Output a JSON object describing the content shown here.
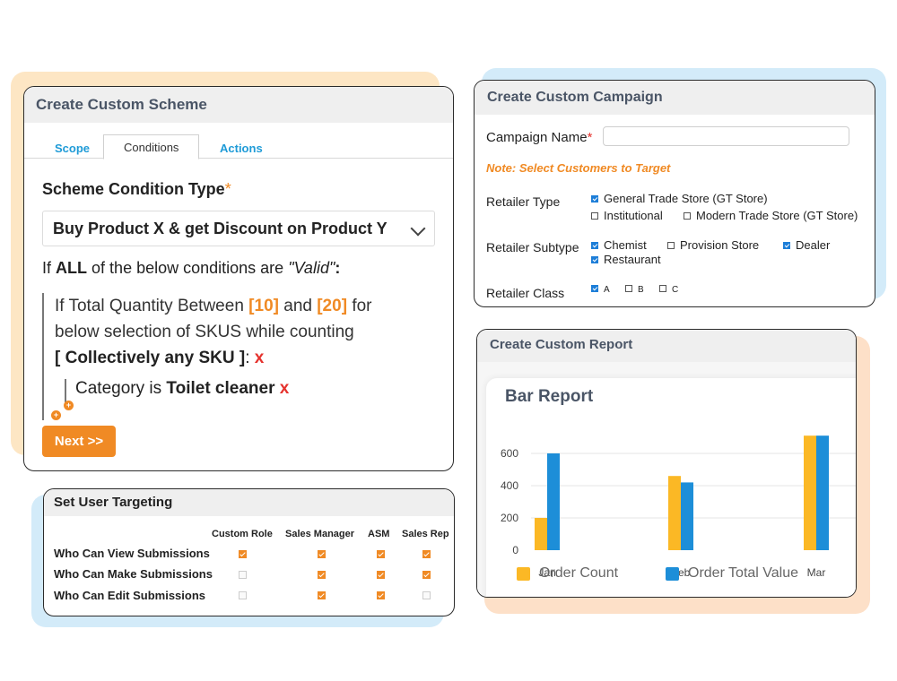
{
  "colors": {
    "orange": "#f08a24",
    "blue": "#1d8ed8",
    "blob_orange": "#fde6c4",
    "blob_blue": "#d3ebf9",
    "blob_peach": "#fde0c8",
    "header_gray": "#efefef"
  },
  "scheme": {
    "title": "Create Custom Scheme",
    "tabs": [
      {
        "label": "Scope",
        "active": false
      },
      {
        "label": "Conditions",
        "active": true
      },
      {
        "label": "Actions",
        "active": false
      }
    ],
    "condition_type_label": "Scheme Condition Type",
    "required_mark": "*",
    "condition_type_value": "Buy Product X & get Discount on Product Y",
    "conditions_prefix": "If",
    "conditions_all": "ALL",
    "conditions_mid": "of the below conditions are",
    "conditions_valid": "\"Valid\"",
    "conditions_colon": ":",
    "rule": {
      "line1_prefix": "If Total Quantity Between",
      "min": "[10]",
      "and": "and",
      "max": "[20]",
      "line1_suffix": "for",
      "line2": "below selection of SKUS while counting",
      "counting_mode": "[ Collectively any SKU ]",
      "colon": ":",
      "remove": "x"
    },
    "sub_rule": {
      "prefix": "Category is",
      "value": "Toilet cleaner",
      "remove": "x"
    },
    "add_icon": "+",
    "next_button": "Next >>"
  },
  "campaign": {
    "title": "Create Custom Campaign",
    "name_label": "Campaign Name",
    "required_mark": "*",
    "name_value": "",
    "note": "Note: Select Customers to Target",
    "retailer_type": {
      "label": "Retailer Type",
      "options": [
        {
          "label": "General Trade Store (GT Store)",
          "checked": true
        },
        {
          "label": "Institutional",
          "checked": false
        },
        {
          "label": "Modern Trade Store (GT Store)",
          "checked": false
        }
      ]
    },
    "retailer_subtype": {
      "label": "Retailer Subtype",
      "options": [
        {
          "label": "Chemist",
          "checked": true
        },
        {
          "label": "Provision Store",
          "checked": false
        },
        {
          "label": "Dealer",
          "checked": true
        },
        {
          "label": "Restaurant",
          "checked": true
        }
      ]
    },
    "retailer_class": {
      "label": "Retailer Class",
      "options": [
        {
          "label": "A",
          "checked": true
        },
        {
          "label": "B",
          "checked": false
        },
        {
          "label": "C",
          "checked": false
        }
      ]
    }
  },
  "targeting": {
    "title": "Set User Targeting",
    "columns": [
      "Custom Role",
      "Sales Manager",
      "ASM",
      "Sales Rep"
    ],
    "rows": [
      {
        "label": "Who Can View Submissions",
        "values": [
          true,
          true,
          true,
          true
        ]
      },
      {
        "label": "Who Can Make Submissions",
        "values": [
          false,
          true,
          true,
          true
        ]
      },
      {
        "label": "Who Can Edit Submissions",
        "values": [
          false,
          true,
          true,
          false
        ]
      }
    ]
  },
  "report": {
    "title": "Create Custom Report",
    "chart_data": {
      "type": "bar",
      "title": "Bar Report",
      "categories": [
        "Jan",
        "Feb",
        "Mar"
      ],
      "series": [
        {
          "name": "Order Count",
          "color": "#fbb825",
          "values": [
            200,
            460,
            710
          ]
        },
        {
          "name": "Order Total Value",
          "color": "#1d8ed8",
          "values": [
            600,
            420,
            710
          ]
        }
      ],
      "yticks": [
        0,
        200,
        400,
        600
      ],
      "ylim": [
        0,
        710
      ],
      "grid": true,
      "legend": "bottom"
    }
  }
}
